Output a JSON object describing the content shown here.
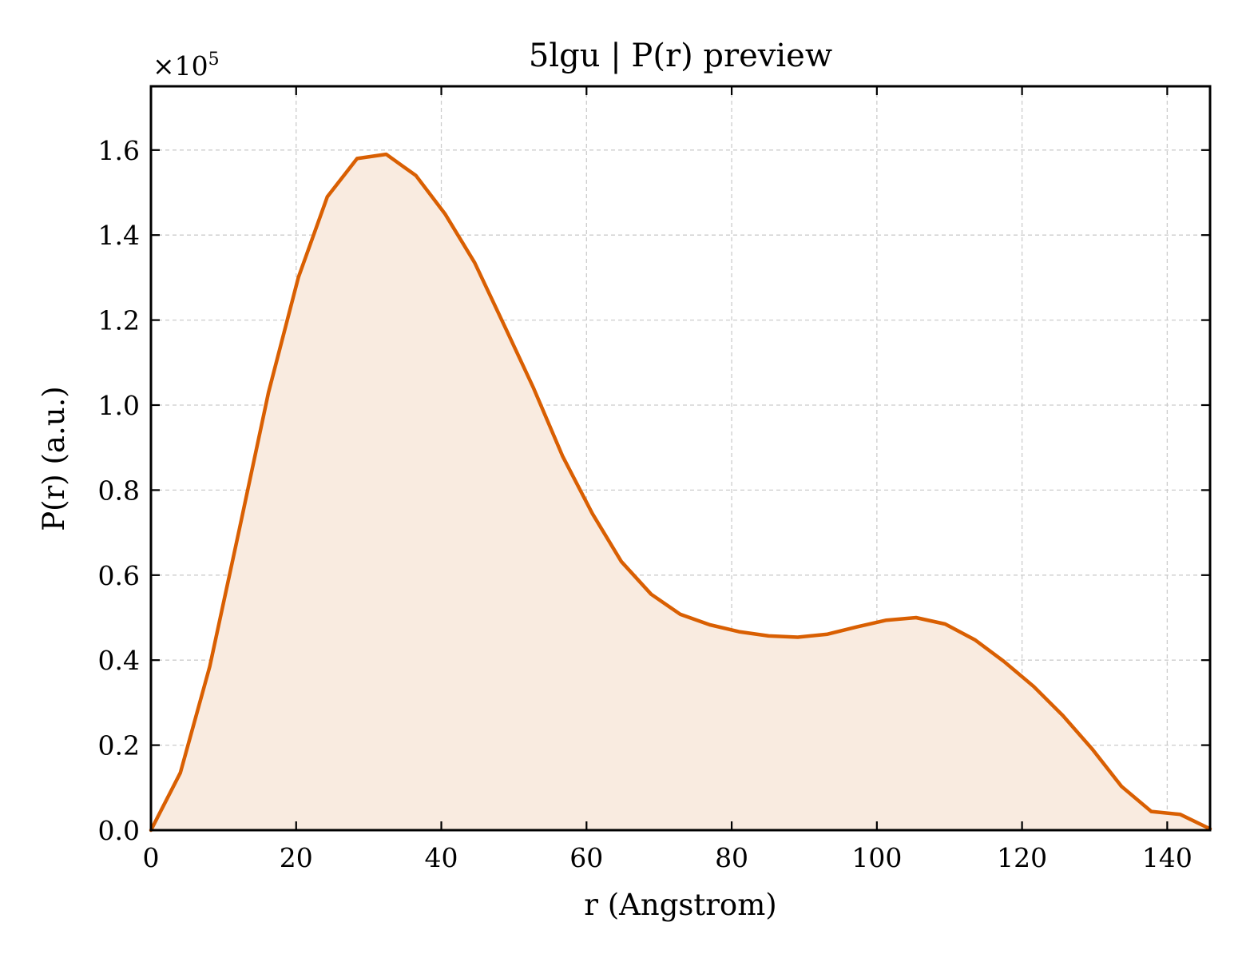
{
  "chart_data": {
    "type": "area",
    "title": "5lgu | P(r) preview",
    "xlabel": "r (Angstrom)",
    "ylabel": "P(r) (a.u.)",
    "y_offset_text": {
      "base": "×10",
      "exponent": "5"
    },
    "y_multiplier": 100000,
    "xlim": [
      0,
      145.9
    ],
    "ylim": [
      0,
      1.75
    ],
    "x_ticks": [
      0,
      20,
      40,
      60,
      80,
      100,
      120,
      140
    ],
    "x_tick_labels": [
      "0",
      "20",
      "40",
      "60",
      "80",
      "100",
      "120",
      "140"
    ],
    "y_ticks": [
      0.0,
      0.2,
      0.4,
      0.6,
      0.8,
      1.0,
      1.2,
      1.4,
      1.6
    ],
    "y_tick_labels": [
      "0.0",
      "0.2",
      "0.4",
      "0.6",
      "0.8",
      "1.0",
      "1.2",
      "1.4",
      "1.6"
    ],
    "grid": true,
    "legend": "none",
    "line_color": "#d95f02",
    "fill_color": "#f9ebe0",
    "series": [
      {
        "x": [
          0,
          4.05,
          8.1,
          12.2,
          16.2,
          20.3,
          24.3,
          28.4,
          32.4,
          36.5,
          40.5,
          44.6,
          48.6,
          52.7,
          56.7,
          60.8,
          64.8,
          68.9,
          72.9,
          77.0,
          81.0,
          85.1,
          89.1,
          93.2,
          97.2,
          101.3,
          105.4,
          109.4,
          113.5,
          117.5,
          121.6,
          125.6,
          129.7,
          133.7,
          137.8,
          141.8,
          145.9
        ],
        "y": [
          0.0,
          0.135,
          0.385,
          0.71,
          1.03,
          1.3,
          1.49,
          1.58,
          1.59,
          1.54,
          1.45,
          1.335,
          1.19,
          1.04,
          0.88,
          0.745,
          0.632,
          0.555,
          0.508,
          0.483,
          0.467,
          0.457,
          0.454,
          0.461,
          0.478,
          0.494,
          0.5,
          0.485,
          0.448,
          0.397,
          0.338,
          0.27,
          0.19,
          0.103,
          0.044,
          0.037,
          0.003
        ]
      }
    ]
  }
}
